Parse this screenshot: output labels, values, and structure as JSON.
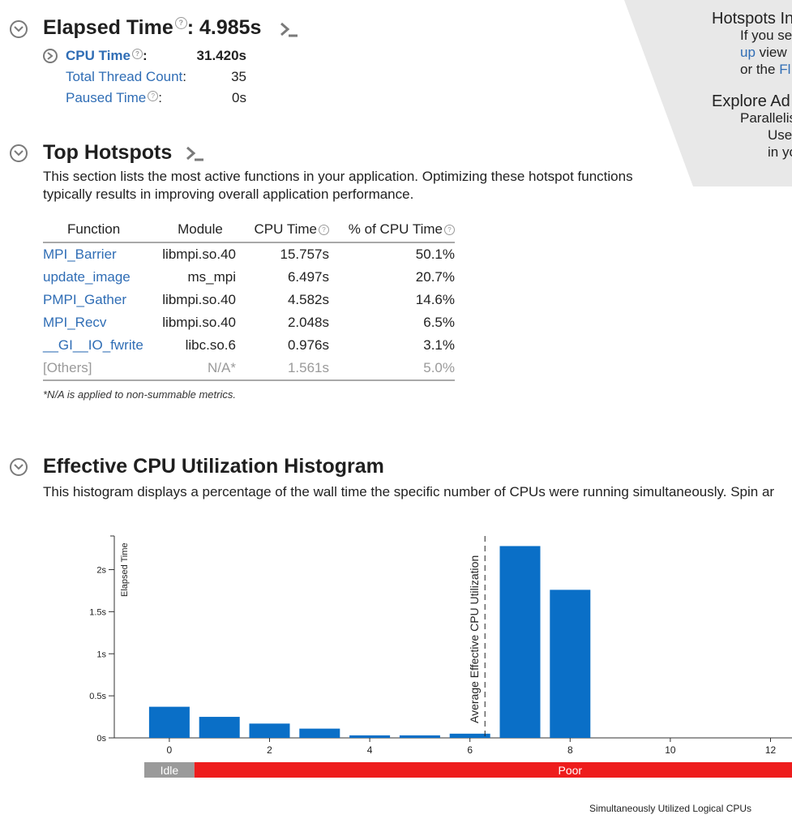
{
  "summary": {
    "elapsed_label": "Elapsed Time",
    "elapsed_value": ": 4.985s",
    "cpu_time_label": "CPU Time",
    "cpu_time_colon": ":",
    "cpu_time_value": "31.420s",
    "thread_count_label": "Total Thread Count",
    "thread_count_colon": ":",
    "thread_count_value": "35",
    "paused_label": "Paused Time",
    "paused_colon": ":",
    "paused_value": "0s"
  },
  "hotspots": {
    "title": "Top Hotspots",
    "description_line1": "This section lists the most active functions in your application. Optimizing these hotspot functions",
    "description_line2": "typically results in improving overall application performance.",
    "columns": [
      "Function",
      "Module",
      "CPU Time",
      "% of CPU Time"
    ],
    "rows": [
      {
        "function": "MPI_Barrier",
        "module": "libmpi.so.40",
        "cpu_time": "15.757s",
        "pct": "50.1%"
      },
      {
        "function": "update_image",
        "module": "ms_mpi",
        "cpu_time": "6.497s",
        "pct": "20.7%"
      },
      {
        "function": "PMPI_Gather",
        "module": "libmpi.so.40",
        "cpu_time": "4.582s",
        "pct": "14.6%"
      },
      {
        "function": "MPI_Recv",
        "module": "libmpi.so.40",
        "cpu_time": "2.048s",
        "pct": "6.5%"
      },
      {
        "function": "__GI__IO_fwrite",
        "module": "libc.so.6",
        "cpu_time": "0.976s",
        "pct": "3.1%"
      }
    ],
    "others": {
      "function": "[Others]",
      "module": "N/A*",
      "cpu_time": "1.561s",
      "pct": "5.0%"
    },
    "footnote": "*N/A is applied to non-summable metrics."
  },
  "histogram": {
    "title": "Effective CPU Utilization Histogram",
    "description": "This histogram displays a percentage of the wall time the specific number of CPUs were running simultaneously. Spin ar"
  },
  "panel": {
    "line1": "Hotspots In",
    "line2": "If you se",
    "line3_link": "up",
    "line3_rest": " view",
    "line4_text": "or the ",
    "line4_link": "Fl",
    "line5": "Explore Ad",
    "line6": "Parallelis",
    "line7": "Use",
    "line8": "in yo"
  },
  "colors": {
    "bar": "#0a6fc7",
    "idle": "#9a9a9a",
    "poor": "#ee1c1c",
    "link": "#2f6db5",
    "panel": "#e8e8e8"
  },
  "chart_data": {
    "type": "bar",
    "x": [
      0,
      1,
      2,
      3,
      4,
      5,
      6,
      7,
      8
    ],
    "values": [
      0.37,
      0.25,
      0.17,
      0.11,
      0.03,
      0.03,
      0.05,
      2.28,
      1.76
    ],
    "xticks": [
      0,
      2,
      4,
      6,
      8,
      10,
      12
    ],
    "yticks": [
      "0s",
      "0.5s",
      "1s",
      "1.5s",
      "2s"
    ],
    "ytick_values": [
      0,
      0.5,
      1,
      1.5,
      2
    ],
    "ylim": [
      0,
      2.4
    ],
    "xlim": [
      -0.5,
      12.5
    ],
    "ylabel": "Elapsed Time",
    "xlabel": "Simultaneously Utilized Logical CPUs",
    "average_line_x": 6.3,
    "average_label": "Average Effective CPU Utilization",
    "ranges": [
      {
        "label": "Idle",
        "from": -0.5,
        "to": 0.5
      },
      {
        "label": "Poor",
        "from": 0.5,
        "to": 12.5
      }
    ]
  }
}
